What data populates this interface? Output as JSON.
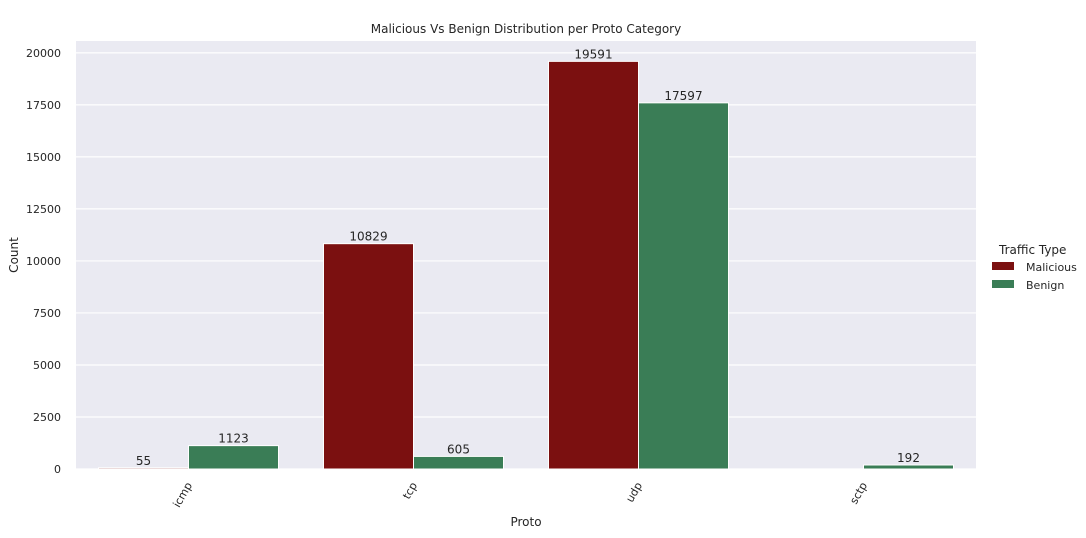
{
  "chart_data": {
    "type": "bar",
    "title": "Malicious Vs Benign Distribution per Proto Category",
    "xlabel": "Proto",
    "ylabel": "Count",
    "categories": [
      "icmp",
      "tcp",
      "udp",
      "sctp"
    ],
    "series": [
      {
        "name": "Malicious",
        "color": "#7b1010",
        "values": [
          55,
          10829,
          19591,
          null
        ]
      },
      {
        "name": "Benign",
        "color": "#3a7d56",
        "values": [
          1123,
          605,
          17597,
          192
        ]
      }
    ],
    "data_labels": [
      [
        "55",
        "10829",
        "19591",
        ""
      ],
      [
        "1123",
        "605",
        "17597",
        "192"
      ]
    ],
    "yticks": [
      0,
      2500,
      5000,
      7500,
      10000,
      12500,
      15000,
      17500,
      20000
    ],
    "ylim": [
      0,
      20570
    ],
    "grid": true,
    "legend": {
      "title": "Traffic Type",
      "placement": "right"
    },
    "colors": {
      "background": "#eaeaf2",
      "grid": "#ffffff",
      "text": "#262626"
    }
  }
}
